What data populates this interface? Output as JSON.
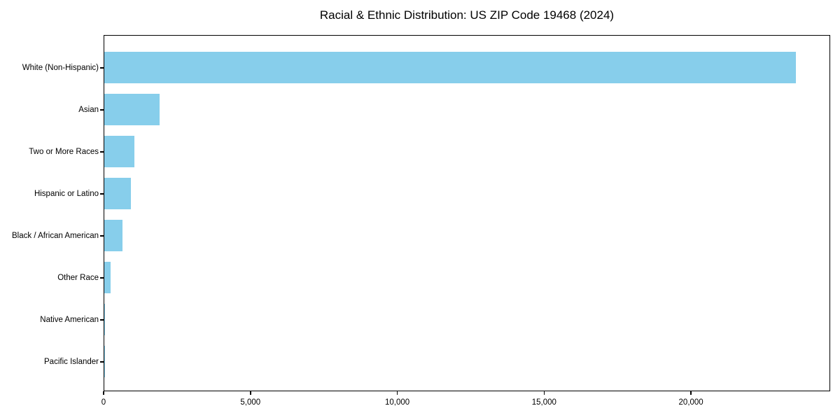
{
  "title": "Racial & Ethnic Distribution: US ZIP Code 19468 (2024)",
  "colors": {
    "bar": "#87CEEB",
    "spine": "#000000",
    "background": "#FFFFFF",
    "text": "#000000"
  },
  "chart_data": {
    "type": "bar",
    "orientation": "horizontal",
    "title": "Racial & Ethnic Distribution: US ZIP Code 19468 (2024)",
    "categories": [
      "White (Non-Hispanic)",
      "Asian",
      "Two or More Races",
      "Hispanic or Latino",
      "Black / African American",
      "Other Race",
      "Native American",
      "Pacific Islander"
    ],
    "values": [
      23560,
      1880,
      1020,
      900,
      610,
      215,
      25,
      5
    ],
    "xlabel": "",
    "ylabel": "",
    "xlim": [
      0,
      24740
    ],
    "xticks": [
      {
        "value": 0,
        "label": "0"
      },
      {
        "value": 5000,
        "label": "5,000"
      },
      {
        "value": 10000,
        "label": "10,000"
      },
      {
        "value": 15000,
        "label": "15,000"
      },
      {
        "value": 20000,
        "label": "20,000"
      }
    ],
    "bar_color": "#87CEEB",
    "grid": false,
    "legend": null
  }
}
